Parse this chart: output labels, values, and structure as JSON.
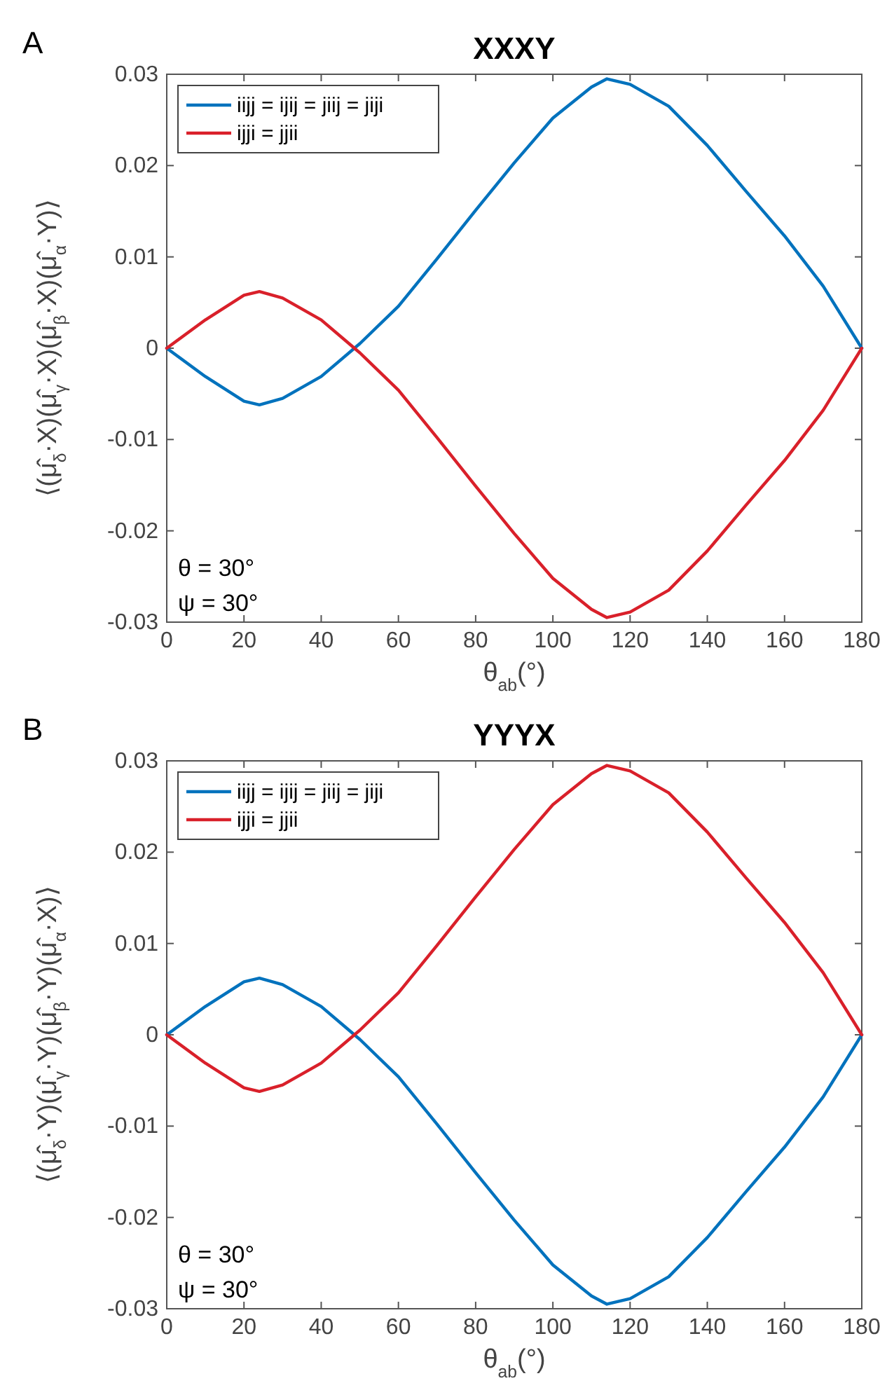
{
  "chart_data": [
    {
      "type": "line",
      "title": "XXXY",
      "xlabel": "θ$_{ab}$(°)",
      "ylabel": "⟨(μ̂$_{δ}$·X)(μ̂$_{γ}$·X)(μ̂$_{β}$·X)(μ̂$_{α}$·Y)⟩",
      "annotations": [
        "A",
        "θ = 30°",
        "ψ = 30°"
      ],
      "x": [
        0,
        10,
        20,
        24,
        30,
        40,
        50,
        60,
        70,
        80,
        90,
        100,
        110,
        114,
        120,
        130,
        140,
        150,
        160,
        170,
        180
      ],
      "series": [
        {
          "name": "iijj = ijij = jiij = jiji",
          "color": "#0072bd",
          "values": [
            0,
            -0.0031,
            -0.0058,
            -0.0062,
            -0.0055,
            -0.0031,
            0.0005,
            0.0046,
            0.0098,
            0.0151,
            0.0203,
            0.0252,
            0.0286,
            0.0295,
            0.0289,
            0.0265,
            0.0222,
            0.0172,
            0.0123,
            0.0068,
            0
          ]
        },
        {
          "name": "ijji = jjii",
          "color": "#d9202a",
          "values": [
            0,
            0.0031,
            0.0058,
            0.0062,
            0.0055,
            0.0031,
            -0.0005,
            -0.0046,
            -0.0098,
            -0.0151,
            -0.0203,
            -0.0252,
            -0.0286,
            -0.0295,
            -0.0289,
            -0.0265,
            -0.0222,
            -0.0172,
            -0.0123,
            -0.0068,
            0
          ]
        }
      ],
      "xlim": [
        0,
        180
      ],
      "xticks": [
        0,
        20,
        40,
        60,
        80,
        100,
        120,
        140,
        160,
        180
      ],
      "ylim": [
        -0.03,
        0.03
      ],
      "yticks": [
        -0.03,
        -0.02,
        -0.01,
        0,
        0.01,
        0.02,
        0.03
      ],
      "grid": false,
      "legend": "top left",
      "marker": "none",
      "line_style": "solid"
    },
    {
      "type": "line",
      "title": "YYYX",
      "xlabel": "θ$_{ab}$(°)",
      "ylabel": "⟨(μ̂$_{δ}$·Y)(μ̂$_{γ}$·Y)(μ̂$_{β}$·Y)(μ̂$_{α}$·X)⟩",
      "annotations": [
        "B",
        "θ = 30°",
        "ψ = 30°"
      ],
      "x": [
        0,
        10,
        20,
        24,
        30,
        40,
        50,
        60,
        70,
        80,
        90,
        100,
        110,
        114,
        120,
        130,
        140,
        150,
        160,
        170,
        180
      ],
      "series": [
        {
          "name": "iijj = ijij = jiij = jiji",
          "color": "#0072bd",
          "values": [
            0,
            0.0031,
            0.0058,
            0.0062,
            0.0055,
            0.0031,
            -0.0005,
            -0.0046,
            -0.0098,
            -0.0151,
            -0.0203,
            -0.0252,
            -0.0286,
            -0.0295,
            -0.0289,
            -0.0265,
            -0.0222,
            -0.0172,
            -0.0123,
            -0.0068,
            0
          ]
        },
        {
          "name": "ijji = jjii",
          "color": "#d9202a",
          "values": [
            0,
            -0.0031,
            -0.0058,
            -0.0062,
            -0.0055,
            -0.0031,
            0.0005,
            0.0046,
            0.0098,
            0.0151,
            0.0203,
            0.0252,
            0.0286,
            0.0295,
            0.0289,
            0.0265,
            0.0222,
            0.0172,
            0.0123,
            0.0068,
            0
          ]
        }
      ],
      "xlim": [
        0,
        180
      ],
      "xticks": [
        0,
        20,
        40,
        60,
        80,
        100,
        120,
        140,
        160,
        180
      ],
      "ylim": [
        -0.03,
        0.03
      ],
      "yticks": [
        -0.03,
        -0.02,
        -0.01,
        0,
        0.01,
        0.02,
        0.03
      ],
      "grid": false,
      "legend": "top left",
      "marker": "none",
      "line_style": "solid"
    }
  ]
}
